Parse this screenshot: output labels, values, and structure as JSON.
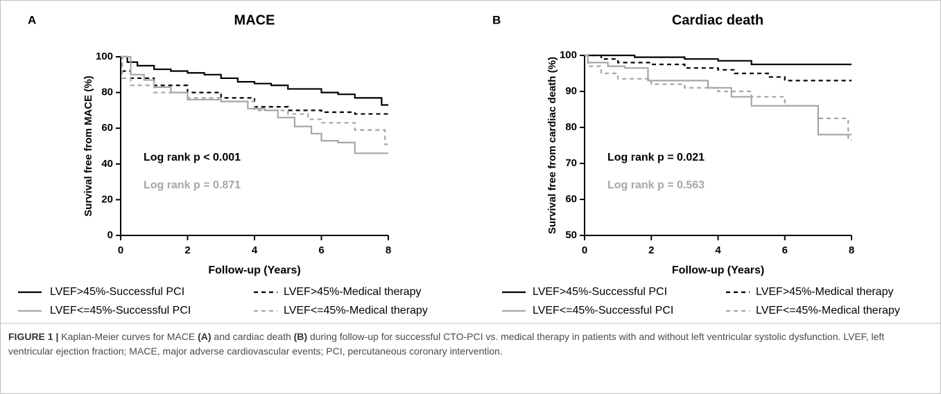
{
  "chart_data": [
    {
      "type": "line",
      "step": true,
      "panel": "A",
      "title": "MACE",
      "xlabel": "Follow-up (Years)",
      "ylabel": "Survival free from MACE (%)",
      "xlim": [
        0,
        8
      ],
      "xticks": [
        0,
        2,
        4,
        6,
        8
      ],
      "ylim": [
        0,
        100
      ],
      "yticks": [
        0,
        20,
        40,
        60,
        80,
        100
      ],
      "series": [
        {
          "name": "LVEF>45%-Successful PCI",
          "color": "#000000",
          "dashed": false,
          "x": [
            0,
            0.2,
            0.5,
            1,
            1.5,
            2,
            2.5,
            3,
            3.5,
            4,
            4.5,
            5,
            5.5,
            6,
            6.5,
            7,
            7.5,
            7.8,
            8
          ],
          "values": [
            100,
            97,
            95,
            93,
            92,
            91,
            90,
            88,
            86,
            85,
            84,
            82,
            82,
            80,
            79,
            77,
            77,
            73,
            73
          ]
        },
        {
          "name": "LVEF>45%-Medical therapy",
          "color": "#000000",
          "dashed": true,
          "x": [
            0,
            0.05,
            0.3,
            1,
            2,
            3,
            4,
            5,
            6,
            7,
            8
          ],
          "values": [
            100,
            92,
            88,
            84,
            80,
            77,
            72,
            70,
            69,
            68,
            67
          ]
        },
        {
          "name": "LVEF<=45%-Successful PCI",
          "color": "#a6a6a6",
          "dashed": false,
          "x": [
            0,
            0.3,
            0.7,
            1,
            1.5,
            2,
            3,
            3.8,
            4.3,
            4.7,
            5.2,
            5.7,
            6,
            6.5,
            7,
            8
          ],
          "values": [
            100,
            90,
            87,
            83,
            80,
            76,
            75,
            71,
            70,
            66,
            61,
            57,
            53,
            52,
            46,
            46
          ]
        },
        {
          "name": "LVEF<=45%-Medical therapy",
          "color": "#a6a6a6",
          "dashed": true,
          "x": [
            0,
            0.05,
            0.3,
            1,
            2,
            3,
            4,
            5,
            5.6,
            6,
            7,
            7.9,
            8
          ],
          "values": [
            100,
            88,
            84,
            80,
            77,
            75,
            70,
            68,
            65,
            63,
            59,
            51,
            51
          ]
        }
      ],
      "annotations": [
        {
          "text": "Log rank p < 0.001",
          "color": "#000000"
        },
        {
          "text": "Log rank p = 0.871",
          "color": "#a6a6a6"
        }
      ]
    },
    {
      "type": "line",
      "step": true,
      "panel": "B",
      "title": "Cardiac death",
      "xlabel": "Follow-up (Years)",
      "ylabel": "Survival free from cardiac death (%)",
      "xlim": [
        0,
        8
      ],
      "xticks": [
        0,
        2,
        4,
        6,
        8
      ],
      "ylim": [
        50,
        100
      ],
      "yticks": [
        50,
        60,
        70,
        80,
        90,
        100
      ],
      "series": [
        {
          "name": "LVEF>45%-Successful PCI",
          "color": "#000000",
          "dashed": false,
          "x": [
            0,
            1.5,
            3,
            4,
            5,
            8
          ],
          "values": [
            100,
            99.5,
            99,
            98.5,
            97.5,
            97.5
          ]
        },
        {
          "name": "LVEF>45%-Medical therapy",
          "color": "#000000",
          "dashed": true,
          "x": [
            0,
            0.5,
            1,
            2,
            3,
            4,
            4.5,
            5.5,
            6,
            8
          ],
          "values": [
            100,
            99,
            98,
            97.5,
            96.5,
            96,
            95,
            94,
            93,
            93
          ]
        },
        {
          "name": "LVEF<=45%-Successful PCI",
          "color": "#a6a6a6",
          "dashed": false,
          "x": [
            0,
            0.1,
            0.7,
            1.2,
            1.9,
            3.7,
            4.4,
            5,
            7,
            8
          ],
          "values": [
            100,
            98,
            97,
            96.5,
            93,
            91,
            88.5,
            86,
            78,
            78
          ]
        },
        {
          "name": "LVEF<=45%-Medical therapy",
          "color": "#a6a6a6",
          "dashed": true,
          "x": [
            0,
            0.1,
            0.5,
            1,
            2,
            3,
            4,
            5,
            6,
            7,
            7.9,
            8
          ],
          "values": [
            100,
            97,
            95,
            93.5,
            92,
            91,
            90,
            88.5,
            86,
            82.5,
            76.5,
            76.5
          ]
        }
      ],
      "annotations": [
        {
          "text": "Log rank p = 0.021",
          "color": "#000000"
        },
        {
          "text": "Log rank p = 0.563",
          "color": "#a6a6a6"
        }
      ]
    }
  ],
  "caption": [
    {
      "text": "FIGURE 1 |",
      "bold": true
    },
    {
      "text": " Kaplan-Meier curves for MACE ",
      "bold": false
    },
    {
      "text": "(A)",
      "bold": true
    },
    {
      "text": " and cardiac death ",
      "bold": false
    },
    {
      "text": "(B)",
      "bold": true
    },
    {
      "text": " during follow-up for successful CTO-PCI vs. medical therapy in patients with and without left ventricular systolic dysfunction. LVEF, left ventricular ejection fraction; MACE, major adverse cardiovascular events; PCI, percutaneous coronary intervention.",
      "bold": false
    }
  ]
}
